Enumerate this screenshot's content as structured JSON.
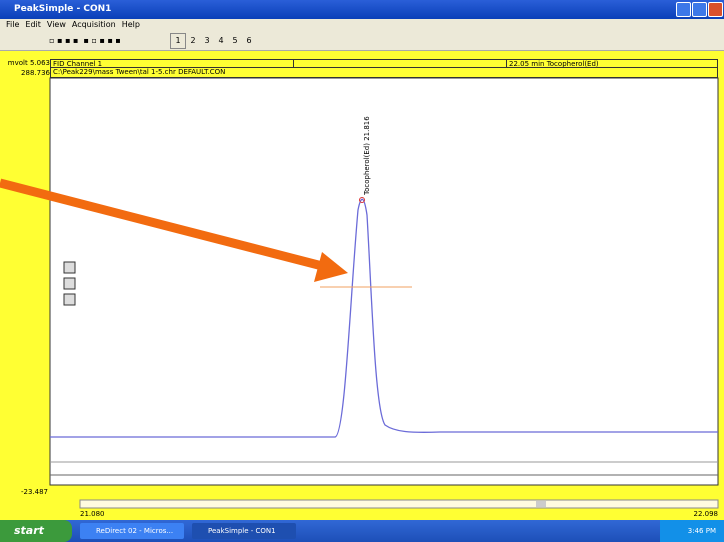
{
  "window": {
    "title": "PeakSimple - CON1"
  },
  "menu": [
    "File",
    "Edit",
    "View",
    "Acquisition",
    "Help"
  ],
  "toolbar": {
    "channels": [
      "1",
      "2",
      "3",
      "4",
      "5",
      "6"
    ]
  },
  "header": {
    "y_max_label": "mvolt 5.063",
    "y_top_value": "288.736",
    "channel": "FID Channel 1",
    "file": "C:\\Peak229\\mass Tween\\tal 1-5.chr DEFAULT.CON",
    "retention": "22.05 min Tocopherol(Ed)"
  },
  "plot": {
    "peak_label": "Tocopherol(Ed) 21.816",
    "y_min": "-23.487",
    "x_start": "21.080",
    "x_end": "22.098"
  },
  "taskbar": {
    "start": "start",
    "tasks": [
      "ReDirect 02 - Micros...",
      "PeakSimple - CON1"
    ],
    "clock": "3:46 PM"
  }
}
